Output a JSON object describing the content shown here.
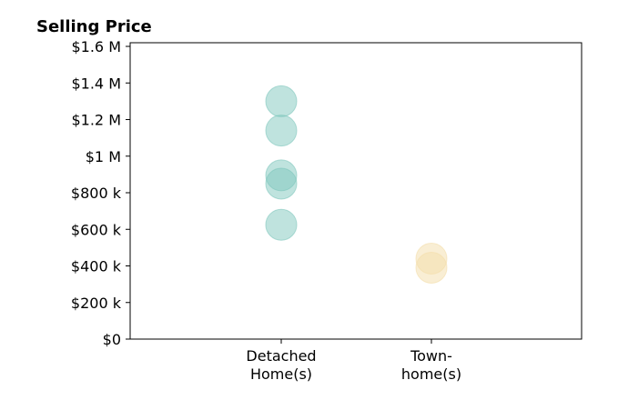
{
  "chart_data": {
    "type": "scatter",
    "title": "Selling Price",
    "xlabel": "",
    "ylabel": "",
    "categories": [
      [
        "Detached",
        "Home(s)"
      ],
      [
        "Town-",
        "home(s)"
      ]
    ],
    "y_ticks": [
      "$0",
      "$200 k",
      "$400 k",
      "$600 k",
      "$800 k",
      "$1 M",
      "$1.2 M",
      "$1.4 M",
      "$1.6 M"
    ],
    "ylim": [
      0,
      1620000
    ],
    "grid": false,
    "series": [
      {
        "category_index": 0,
        "color": "#7fc7bd",
        "values": [
          1300000,
          1140000,
          895000,
          850000,
          625000
        ]
      },
      {
        "category_index": 1,
        "color": "#f3deaa",
        "values": [
          440000,
          390000
        ]
      }
    ]
  }
}
